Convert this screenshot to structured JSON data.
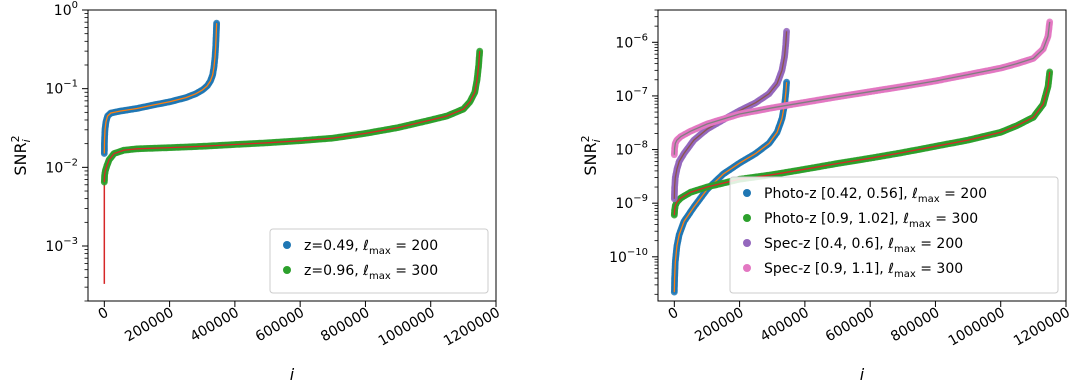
{
  "chart_data": [
    {
      "type": "scatter",
      "yscale": "log",
      "ylabel_main": "SNR",
      "ylabel_sup": "2",
      "ylabel_sub": "i",
      "xlabel": "i",
      "xlim": [
        -50000,
        1200000
      ],
      "ylim": [
        0.0002,
        1.0
      ],
      "xticks": [
        0,
        200000,
        400000,
        600000,
        800000,
        1000000,
        1200000
      ],
      "xtick_labels": [
        "0",
        "200000",
        "400000",
        "600000",
        "800000",
        "1000000",
        "1200000"
      ],
      "yticks": [
        0.001,
        0.01,
        0.1,
        1.0
      ],
      "ytick_labels": [
        {
          "base": "10",
          "exp": "−3"
        },
        {
          "base": "10",
          "exp": "−2"
        },
        {
          "base": "10",
          "exp": "−1"
        },
        {
          "base": "10",
          "exp": "0"
        }
      ],
      "legend_position": "lower-right",
      "series": [
        {
          "name": "z=0.49, ",
          "name_math": "ℓ",
          "name_sub": "max",
          "name_val": " = 200",
          "color": "#1f77b4",
          "fit_color": "#ff7f0e",
          "x": [
            0,
            500,
            2000,
            5000,
            10000,
            20000,
            50000,
            100000,
            150000,
            200000,
            250000,
            280000,
            300000,
            315000,
            325000,
            332000,
            336000,
            339000,
            341000,
            342500,
            343500,
            344000
          ],
          "y": [
            0.015,
            0.022,
            0.03,
            0.038,
            0.045,
            0.049,
            0.052,
            0.056,
            0.062,
            0.068,
            0.077,
            0.086,
            0.096,
            0.108,
            0.125,
            0.15,
            0.19,
            0.25,
            0.33,
            0.45,
            0.58,
            0.68
          ]
        },
        {
          "name": "z=0.96, ",
          "name_math": "ℓ",
          "name_sub": "max",
          "name_val": " = 300",
          "color": "#2ca02c",
          "fit_color": "#d62728",
          "x": [
            0,
            1000,
            3000,
            8000,
            15000,
            30000,
            60000,
            100000,
            200000,
            300000,
            400000,
            500000,
            600000,
            700000,
            800000,
            900000,
            1000000,
            1050000,
            1100000,
            1120000,
            1135000,
            1142000,
            1147000,
            1150000
          ],
          "y": [
            0.0065,
            0.008,
            0.009,
            0.0105,
            0.0125,
            0.015,
            0.0165,
            0.0172,
            0.0178,
            0.0185,
            0.0195,
            0.0205,
            0.0218,
            0.0235,
            0.027,
            0.032,
            0.04,
            0.045,
            0.055,
            0.068,
            0.09,
            0.13,
            0.2,
            0.3
          ]
        }
      ],
      "red_line_bottom": 0.00033
    },
    {
      "type": "scatter",
      "yscale": "log",
      "ylabel_main": "SNR",
      "ylabel_sup": "2",
      "ylabel_sub": "i",
      "xlabel": "i",
      "xlim": [
        -50000,
        1200000
      ],
      "ylim": [
        1.5e-11,
        4e-06
      ],
      "xticks": [
        0,
        200000,
        400000,
        600000,
        800000,
        1000000,
        1200000
      ],
      "xtick_labels": [
        "0",
        "200000",
        "400000",
        "600000",
        "800000",
        "1000000",
        "1200000"
      ],
      "yticks": [
        1e-10,
        1e-09,
        1e-08,
        1e-07,
        1e-06
      ],
      "ytick_labels": [
        {
          "base": "10",
          "exp": "−10"
        },
        {
          "base": "10",
          "exp": "−9"
        },
        {
          "base": "10",
          "exp": "−8"
        },
        {
          "base": "10",
          "exp": "−7"
        },
        {
          "base": "10",
          "exp": "−6"
        }
      ],
      "legend_position": "lower-right",
      "series": [
        {
          "name": "Photo-z [0.42, 0.56], ",
          "name_math": "ℓ",
          "name_sub": "max",
          "name_val": " = 200",
          "color": "#1f77b4",
          "fit_color": "#ff7f0e",
          "x": [
            0,
            1000,
            3000,
            8000,
            15000,
            30000,
            60000,
            100000,
            150000,
            200000,
            250000,
            290000,
            315000,
            330000,
            338000,
            342000,
            344000
          ],
          "y": [
            2.2e-11,
            4e-11,
            8e-11,
            1.6e-10,
            2.6e-10,
            4.6e-10,
            8.5e-10,
            1.8e-09,
            3.5e-09,
            5.6e-09,
            8.5e-09,
            1.3e-08,
            2.1e-08,
            3.8e-08,
            7e-08,
            1.2e-07,
            1.8e-07
          ]
        },
        {
          "name": "Photo-z [0.9, 1.02], ",
          "name_math": "ℓ",
          "name_sub": "max",
          "name_val": " = 300",
          "color": "#2ca02c",
          "fit_color": "#d62728",
          "x": [
            0,
            1000,
            3000,
            8000,
            20000,
            50000,
            100000,
            200000,
            300000,
            400000,
            500000,
            600000,
            700000,
            800000,
            900000,
            1000000,
            1050000,
            1100000,
            1130000,
            1145000,
            1150000
          ],
          "y": [
            6e-10,
            7.5e-10,
            9e-10,
            1.05e-09,
            1.25e-09,
            1.6e-09,
            2e-09,
            2.8e-09,
            3.4e-09,
            4.3e-09,
            5.5e-09,
            6.9e-09,
            8.8e-09,
            1.15e-08,
            1.5e-08,
            2.1e-08,
            2.8e-08,
            4e-08,
            7e-08,
            1.5e-07,
            2.8e-07
          ]
        },
        {
          "name": "Spec-z [0.4, 0.6], ",
          "name_math": "ℓ",
          "name_sub": "max",
          "name_val": " = 200",
          "color": "#9467bd",
          "fit_color": "#8c564b",
          "x": [
            0,
            1000,
            3000,
            8000,
            15000,
            30000,
            60000,
            100000,
            150000,
            200000,
            250000,
            290000,
            315000,
            330000,
            338000,
            342000,
            344000
          ],
          "y": [
            1.2e-09,
            2e-09,
            3e-09,
            4.3e-09,
            6e-09,
            8.5e-09,
            1.5e-08,
            2.4e-08,
            3.6e-08,
            5.3e-08,
            7.5e-08,
            1.1e-07,
            1.7e-07,
            3e-07,
            5.5e-07,
            1e-06,
            1.6e-06
          ]
        },
        {
          "name": "Spec-z [0.9, 1.1], ",
          "name_math": "ℓ",
          "name_sub": "max",
          "name_val": " = 300",
          "color": "#e377c2",
          "fit_color": "#7f7f7f",
          "x": [
            0,
            1000,
            3000,
            8000,
            20000,
            50000,
            100000,
            200000,
            300000,
            400000,
            500000,
            600000,
            700000,
            800000,
            900000,
            1000000,
            1050000,
            1100000,
            1130000,
            1145000,
            1150000
          ],
          "y": [
            8e-09,
            1.05e-08,
            1.3e-08,
            1.5e-08,
            1.75e-08,
            2.2e-08,
            3e-08,
            4.6e-08,
            6e-08,
            7.6e-08,
            9.6e-08,
            1.2e-07,
            1.5e-07,
            1.9e-07,
            2.5e-07,
            3.3e-07,
            4e-07,
            5e-07,
            7.5e-07,
            1.3e-06,
            2.4e-06
          ]
        }
      ]
    }
  ]
}
